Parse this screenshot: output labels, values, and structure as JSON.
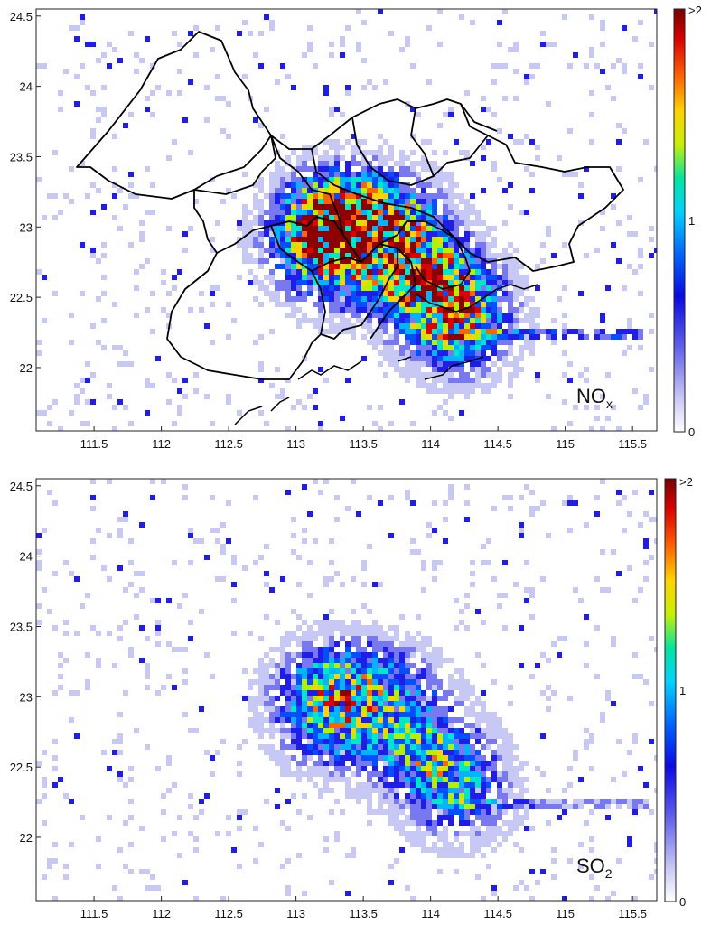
{
  "maps": [
    {
      "id": "nox",
      "species": "NOx",
      "species_main": "NO",
      "species_sub": "x",
      "colorbar": {
        "max_label": ">2",
        "mid_label": "1",
        "min_label": "0"
      }
    },
    {
      "id": "so2",
      "species": "SO2",
      "species_main": "SO",
      "species_sub": "2",
      "colorbar": {
        "max_label": ">2",
        "mid_label": "1",
        "min_label": "0"
      }
    }
  ],
  "x_ticks": [
    "111.5",
    "112",
    "112.5",
    "113",
    "113.5",
    "114",
    "114.5",
    "115",
    "115.5"
  ],
  "x_tick_values": [
    111.5,
    112,
    112.5,
    113,
    113.5,
    114,
    114.5,
    115,
    115.5
  ],
  "y_ticks": [
    "24.5",
    "24",
    "23.5",
    "23",
    "22.5",
    "22"
  ],
  "y_tick_values": [
    24.5,
    24,
    23.5,
    23,
    22.5,
    22
  ],
  "lon_range": [
    111.07,
    115.68
  ],
  "lat_range": [
    21.55,
    24.55
  ],
  "colormap": [
    "#ffffff",
    "#c8c8f5",
    "#7878f0",
    "#1e1ee6",
    "#0050ff",
    "#00b4ff",
    "#00e6c8",
    "#b4f000",
    "#ffd200",
    "#ff6400",
    "#dc0000",
    "#8c0000"
  ],
  "hotspots": [
    {
      "lon": 113.3,
      "lat": 23.1,
      "strength": 1.0
    },
    {
      "lon": 113.7,
      "lat": 23.05,
      "strength": 0.8
    },
    {
      "lon": 114.05,
      "lat": 22.55,
      "strength": 0.9
    },
    {
      "lon": 113.15,
      "lat": 22.95,
      "strength": 0.7
    },
    {
      "lon": 113.85,
      "lat": 22.7,
      "strength": 0.6
    },
    {
      "lon": 113.3,
      "lat": 22.75,
      "strength": 0.5
    },
    {
      "lon": 114.2,
      "lat": 22.3,
      "strength": 0.7
    }
  ]
}
